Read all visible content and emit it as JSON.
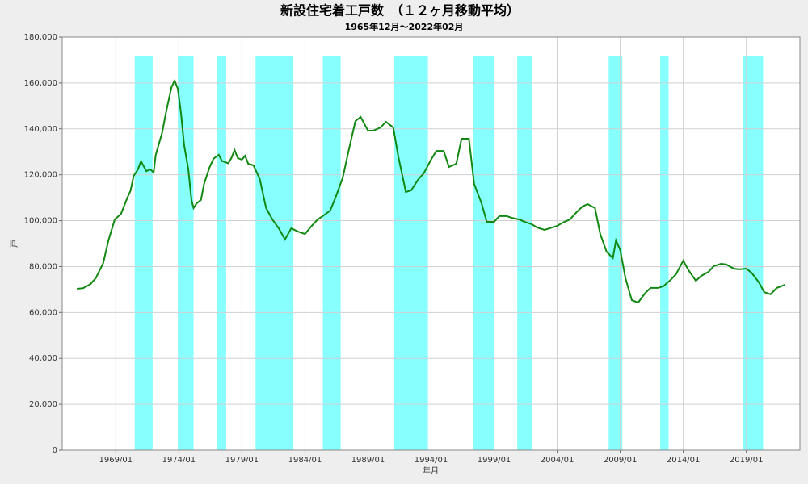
{
  "chart_data": {
    "type": "line",
    "title": "新設住宅着工戸数　（１２ヶ月移動平均）",
    "subtitle": "1965年12月～2022年02月",
    "x_label": "年月",
    "y_label": "戸",
    "xlim": [
      "1964/10",
      "2023/04"
    ],
    "xticks": [
      "1969/01",
      "1974/01",
      "1979/01",
      "1984/01",
      "1989/01",
      "1994/01",
      "1999/01",
      "2004/01",
      "2009/01",
      "2014/01",
      "2019/01"
    ],
    "ylim": [
      0,
      180000
    ],
    "yticks": [
      0,
      {
        "value": 20000,
        "label": "20,000"
      },
      {
        "value": 40000,
        "label": "40,000"
      },
      {
        "value": 60000,
        "label": "60,000"
      },
      {
        "value": 80000,
        "label": "80,000"
      },
      {
        "value": 100000,
        "label": "100,000"
      },
      {
        "value": 120000,
        "label": "120,000"
      },
      {
        "value": 140000,
        "label": "140,000"
      },
      {
        "value": 160000,
        "label": "160,000"
      },
      {
        "value": 180000,
        "label": "180,000"
      }
    ],
    "grid": true,
    "band_color": "#88ffff",
    "recessions": [
      {
        "start": "1970/07",
        "end": "1971/12"
      },
      {
        "start": "1973/12",
        "end": "1975/03"
      },
      {
        "start": "1977/01",
        "end": "1977/10"
      },
      {
        "start": "1980/02",
        "end": "1983/02"
      },
      {
        "start": "1985/06",
        "end": "1986/11"
      },
      {
        "start": "1991/02",
        "end": "1993/10"
      },
      {
        "start": "1997/05",
        "end": "1999/01"
      },
      {
        "start": "2000/11",
        "end": "2002/01"
      },
      {
        "start": "2008/02",
        "end": "2009/03"
      },
      {
        "start": "2012/03",
        "end": "2012/11"
      },
      {
        "start": "2018/10",
        "end": "2020/05"
      }
    ],
    "x": [
      "1965/12",
      "1966/06",
      "1967/01",
      "1967/06",
      "1968/01",
      "1968/06",
      "1968/12",
      "1969/06",
      "1969/12",
      "1970/03",
      "1970/06",
      "1970/10",
      "1971/01",
      "1971/06",
      "1971/10",
      "1972/01",
      "1972/03",
      "1972/09",
      "1973/01",
      "1973/06",
      "1973/09",
      "1973/12",
      "1974/03",
      "1974/06",
      "1974/10",
      "1975/01",
      "1975/03",
      "1975/06",
      "1975/10",
      "1976/01",
      "1976/06",
      "1976/10",
      "1977/03",
      "1977/06",
      "1977/12",
      "1978/03",
      "1978/06",
      "1978/09",
      "1979/01",
      "1979/04",
      "1979/07",
      "1979/12",
      "1980/06",
      "1980/12",
      "1981/06",
      "1981/12",
      "1982/06",
      "1982/12",
      "1983/06",
      "1984/01",
      "1984/06",
      "1985/01",
      "1985/06",
      "1986/01",
      "1986/06",
      "1987/01",
      "1987/06",
      "1988/01",
      "1988/06",
      "1989/01",
      "1989/06",
      "1990/01",
      "1990/06",
      "1991/01",
      "1991/06",
      "1992/01",
      "1992/06",
      "1993/01",
      "1993/06",
      "1994/01",
      "1994/06",
      "1995/01",
      "1995/06",
      "1996/01",
      "1996/06",
      "1997/01",
      "1997/06",
      "1998/01",
      "1998/06",
      "1999/01",
      "1999/06",
      "2000/01",
      "2000/06",
      "2001/01",
      "2001/06",
      "2002/01",
      "2002/06",
      "2003/01",
      "2003/06",
      "2004/01",
      "2004/06",
      "2005/01",
      "2005/06",
      "2006/01",
      "2006/06",
      "2007/01",
      "2007/06",
      "2007/12",
      "2008/06",
      "2008/09",
      "2009/01",
      "2009/06",
      "2009/12",
      "2010/06",
      "2011/01",
      "2011/06",
      "2012/01",
      "2012/06",
      "2013/01",
      "2013/06",
      "2014/01",
      "2014/06",
      "2015/01",
      "2015/06",
      "2016/01",
      "2016/06",
      "2017/01",
      "2017/06",
      "2018/01",
      "2018/06",
      "2019/01",
      "2019/06",
      "2020/01",
      "2020/06",
      "2020/12",
      "2021/06",
      "2022/02"
    ],
    "series": [
      {
        "name": "戸",
        "color": "#118811",
        "values": [
          70300,
          70600,
          72400,
          75000,
          81500,
          91400,
          100500,
          103000,
          110000,
          113000,
          119500,
          122300,
          125900,
          121600,
          122300,
          121000,
          128700,
          138200,
          147700,
          158200,
          161000,
          157500,
          147000,
          133000,
          122300,
          109000,
          105500,
          107600,
          109000,
          116000,
          123000,
          127000,
          128700,
          126000,
          125000,
          127300,
          130800,
          127300,
          126600,
          128300,
          124800,
          124100,
          118100,
          105500,
          100500,
          96700,
          91800,
          96700,
          95300,
          94200,
          97000,
          100500,
          102000,
          104400,
          110000,
          118800,
          129400,
          143400,
          145200,
          139200,
          139200,
          140600,
          143100,
          140600,
          127600,
          112500,
          113200,
          118100,
          120600,
          126600,
          130400,
          130400,
          123400,
          124800,
          135700,
          135700,
          116000,
          107600,
          99500,
          99500,
          102000,
          102000,
          101200,
          100500,
          99500,
          98400,
          97000,
          96000,
          96700,
          97700,
          99100,
          100500,
          103000,
          106200,
          107200,
          105500,
          94200,
          86500,
          83700,
          91400,
          87200,
          74900,
          65400,
          64300,
          68600,
          70700,
          70700,
          71400,
          74200,
          76600,
          82600,
          78400,
          73800,
          75900,
          77700,
          80200,
          81200,
          80900,
          79100,
          78800,
          79100,
          77300,
          73100,
          68900,
          67900,
          70700,
          72100
        ]
      }
    ]
  }
}
